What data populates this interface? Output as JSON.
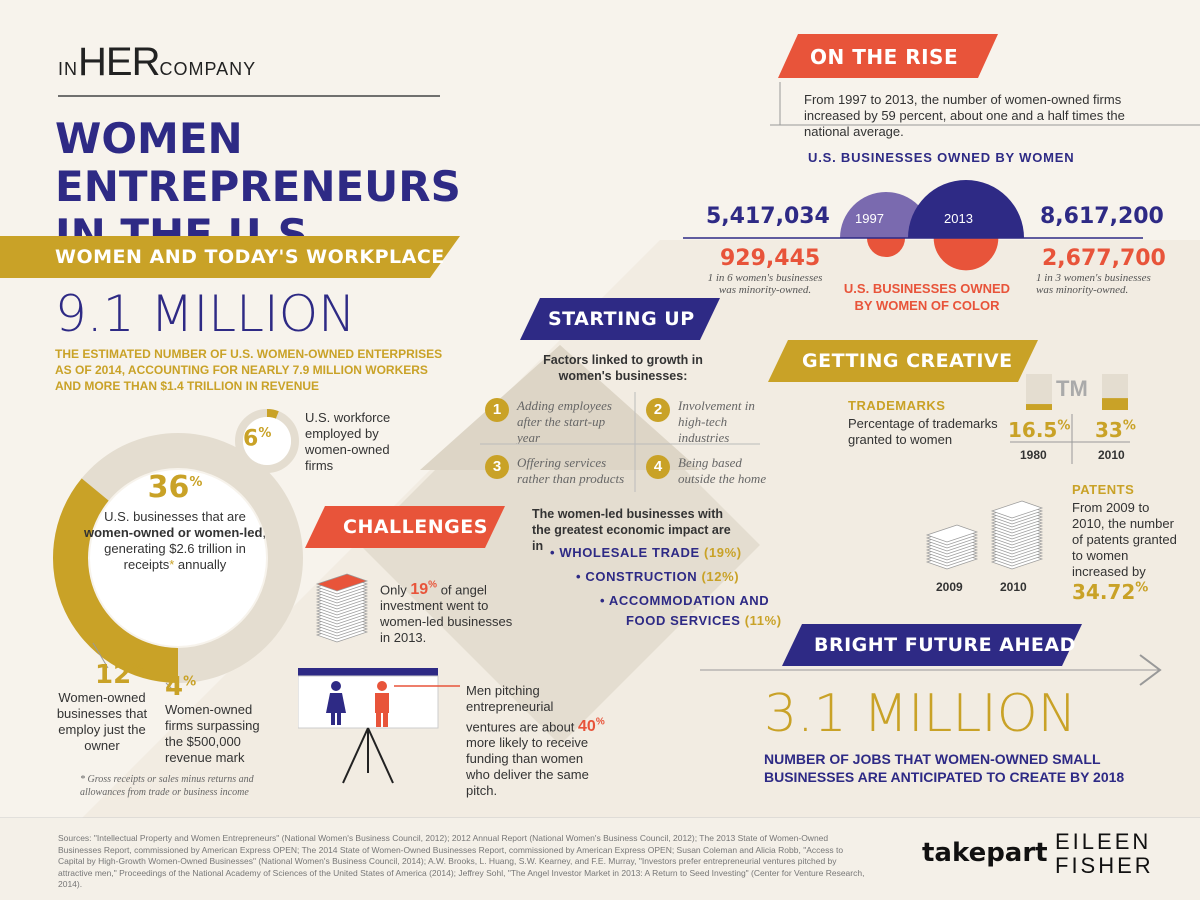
{
  "brand": {
    "in": "IN",
    "her": "HER",
    "company": "COMPANY"
  },
  "title": {
    "line1": "WOMEN ENTREPRENEURS",
    "line2": "IN THE U.S."
  },
  "workplace": {
    "banner": "WOMEN AND TODAY'S WORKPLACE",
    "big_number": "9.1 MILLION",
    "caption": "THE ESTIMATED NUMBER OF U.S. WOMEN-OWNED ENTERPRISES AS OF 2014, ACCOUNTING FOR NEARLY 7.9 MILLION WORKERS AND MORE THAN $1.4 TRILLION IN REVENUE",
    "workforce_pct": "6",
    "workforce_label": "U.S. workforce employed by women-owned firms",
    "donut_pct": "36",
    "donut_text_a": "U.S. businesses that are",
    "donut_text_bold": "women-owned or women-led",
    "donut_text_b": ", generating $2.6 trillion in receipts",
    "donut_text_star": "*",
    "donut_text_c": " annually",
    "p12": "12",
    "p12_label": "Women-owned businesses that employ just the owner",
    "p4": "4",
    "p4_label": "Women-owned firms surpassing the $500,000 revenue mark",
    "footnote": "* Gross receipts or sales minus returns and allowances from trade or business income"
  },
  "rise": {
    "banner": "ON THE RISE",
    "intro": "From 1997 to 2013, the number of women-owned firms increased by 59 percent, about one and a half times the national average.",
    "heading": "U.S. BUSINESSES OWNED BY WOMEN",
    "year1": "1997",
    "year2": "2013",
    "val1997": "5,417,034",
    "val2013": "8,617,200",
    "min1997": "929,445",
    "min2013": "2,677,700",
    "note1997": "1 in 6 women's businesses was minority-owned.",
    "note2013": "1 in 3 women's businesses was minority-owned.",
    "color_label": "U.S. BUSINESSES OWNED BY WOMEN OF COLOR"
  },
  "starting": {
    "banner": "STARTING UP",
    "heading": "Factors linked to growth in women's businesses:",
    "factors": [
      {
        "n": "1",
        "text": "Adding employees after the start-up year"
      },
      {
        "n": "2",
        "text": "Involvement in high-tech industries"
      },
      {
        "n": "3",
        "text": "Offering services rather than products"
      },
      {
        "n": "4",
        "text": "Being based outside the home"
      }
    ],
    "impact_heading": "The women-led businesses with the greatest economic impact are in",
    "sectors": [
      {
        "name": "• WHOLESALE TRADE",
        "pct": "(19%)"
      },
      {
        "name": "• CONSTRUCTION",
        "pct": "(12%)"
      },
      {
        "name": "• ACCOMMODATION AND",
        "pct": ""
      },
      {
        "name": "FOOD SERVICES",
        "pct": "(11%)"
      }
    ]
  },
  "challenges": {
    "banner": "CHALLENGES",
    "angel_a": "Only",
    "angel_pct": "19",
    "angel_b": "of angel investment went to women-led businesses in 2013.",
    "pitch_a": "Men pitching entrepreneurial ventures are about",
    "pitch_pct": "40",
    "pitch_b": "more likely to receive funding than women who deliver the same pitch."
  },
  "creative": {
    "banner": "GETTING CREATIVE",
    "tm_heading": "TRADEMARKS",
    "tm_label": "Percentage of trademarks granted to women",
    "tm_symbol": "TM",
    "tm1980": "16.5",
    "tm2010": "33",
    "y1980": "1980",
    "y2010": "2010",
    "patents_heading": "PATENTS",
    "patents_text": "From 2009 to 2010, the number of patents granted to women increased by",
    "patents_pct": "34.72",
    "p2009": "2009",
    "p2010": "2010"
  },
  "future": {
    "banner": "BRIGHT FUTURE AHEAD",
    "big_number": "3.1 MILLION",
    "caption": "NUMBER OF JOBS THAT WOMEN-OWNED SMALL BUSINESSES ARE ANTICIPATED TO CREATE BY 2018"
  },
  "sources": "Sources: \"Intellectual Property and Women Entrepreneurs\" (National Women's Business Council, 2012); 2012 Annual Report (National Women's Business Council, 2012); The 2013 State of Women-Owned Businesses Report, commissioned by American Express OPEN; The 2014 State of Women-Owned Businesses Report, commissioned by American Express OPEN; Susan Coleman and Alicia Robb, \"Access to Capital by High-Growth Women-Owned Businesses\" (National Women's Business Council, 2014); A.W. Brooks, L. Huang, S.W. Kearney, and F.E. Murray, \"Investors prefer entrepreneurial ventures pitched by attractive men,\" Proceedings of the National Academy of Sciences of the United States of America (2014); Jeffrey Sohl, \"The Angel Investor Market in 2013: A Return to Seed Investing\" (Center for Venture Research, 2014).",
  "partners": {
    "takepart": "takepart",
    "ef1": "EILEEN",
    "ef2": "FISHER"
  },
  "colors": {
    "navy": "#2e2a85",
    "gold": "#c9a227",
    "orange": "#e8543a",
    "beige": "#e4ddd0",
    "purple": "#6b5ba8"
  },
  "chart_data": [
    {
      "type": "pie",
      "title": "",
      "slices": [
        {
          "name": "U.S. businesses that are women-owned or women-led",
          "value": 36
        },
        {
          "name": "Women-owned businesses that employ just the owner",
          "value": 12
        },
        {
          "name": "Women-owned firms surpassing the $500,000 revenue mark",
          "value": 4
        }
      ]
    },
    {
      "type": "pie",
      "title": "",
      "slices": [
        {
          "name": "U.S. workforce employed by women-owned firms",
          "value": 6
        }
      ]
    },
    {
      "type": "bar",
      "title": "U.S. BUSINESSES OWNED BY WOMEN",
      "categories": [
        "1997",
        "2013"
      ],
      "series": [
        {
          "name": "U.S. BUSINESSES OWNED BY WOMEN",
          "values": [
            5417034,
            8617200
          ]
        },
        {
          "name": "U.S. BUSINESSES OWNED BY WOMEN OF COLOR",
          "values": [
            929445,
            2677700
          ]
        }
      ]
    },
    {
      "type": "bar",
      "title": "TRADEMARKS",
      "categories": [
        "1980",
        "2010"
      ],
      "values": [
        16.5,
        33
      ],
      "ylim": [
        0,
        100
      ]
    }
  ]
}
